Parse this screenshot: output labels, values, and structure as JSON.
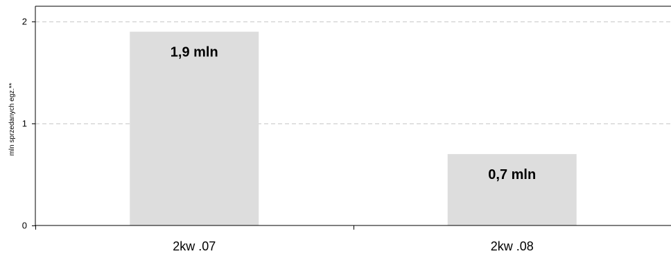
{
  "chart_data": {
    "type": "bar",
    "categories": [
      "2kw .07",
      "2kw .08"
    ],
    "values": [
      1.9,
      0.7
    ],
    "data_labels": [
      "1,9 mln",
      "0,7 mln"
    ],
    "title": "",
    "xlabel": "",
    "ylabel": "mln sprzedanych egz.**",
    "ylim": [
      0,
      2
    ],
    "yticks": [
      0,
      1,
      2
    ],
    "ytick_labels": [
      "0",
      "1",
      "2"
    ],
    "grid": true,
    "bar_color": "#dddddd",
    "grid_color": "#c8c8c8"
  }
}
